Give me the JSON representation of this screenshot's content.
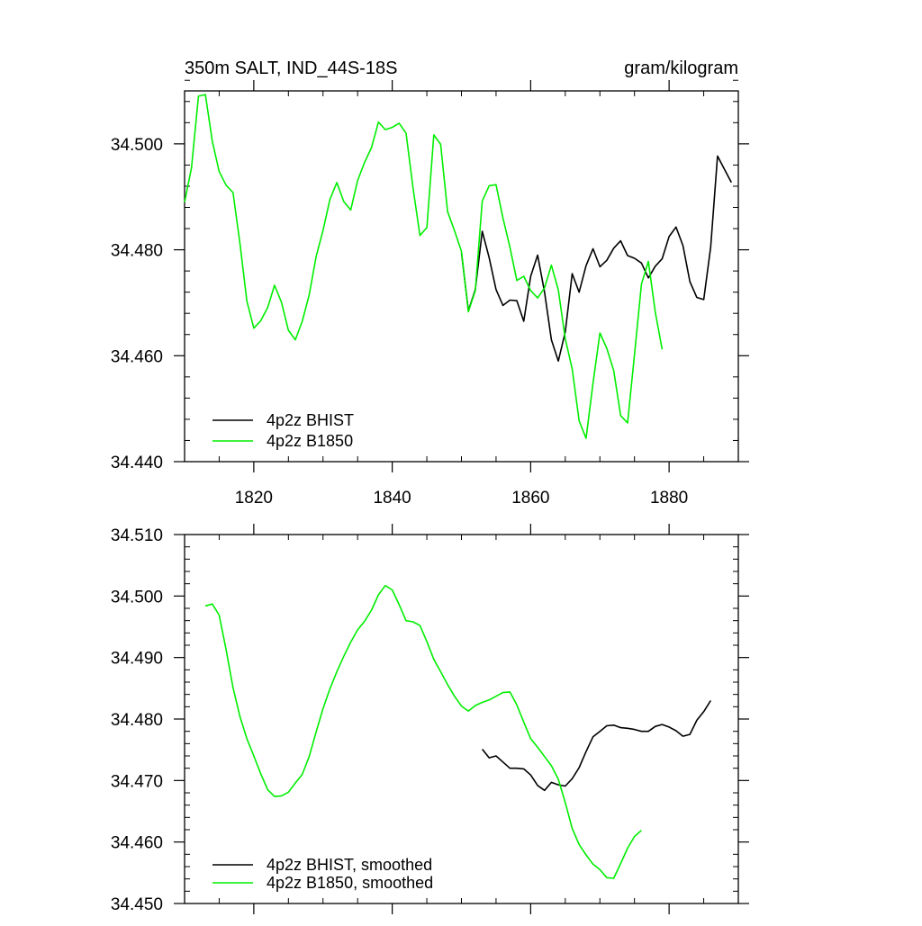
{
  "colors": {
    "bhist": "#000000",
    "b1850": "#00ee00",
    "axis": "#000000"
  },
  "chart_data": [
    {
      "type": "line",
      "title": "350m SALT, IND_44S-18S",
      "units": "gram/kilogram",
      "xlim": [
        1810,
        1890
      ],
      "ylim": [
        34.44,
        34.51
      ],
      "x_ticks": [
        1820,
        1840,
        1860,
        1880
      ],
      "x_tick_labels": [
        "1820",
        "1840",
        "1860",
        "1880"
      ],
      "y_ticks": [
        34.44,
        34.46,
        34.48,
        34.5
      ],
      "y_tick_labels": [
        "34.440",
        "34.460",
        "34.480",
        "34.500"
      ],
      "legend_position": "bottom-left",
      "series": [
        {
          "name": "4p2z BHIST",
          "color_key": "bhist",
          "x": [
            1850,
            1851,
            1852,
            1853,
            1854,
            1855,
            1856,
            1857,
            1858,
            1859,
            1860,
            1861,
            1862,
            1863,
            1864,
            1865,
            1866,
            1867,
            1868,
            1869,
            1870,
            1871,
            1872,
            1873,
            1874,
            1875,
            1876,
            1877,
            1878,
            1879,
            1880,
            1881,
            1882,
            1883,
            1884,
            1885,
            1886,
            1887,
            1888,
            1889
          ],
          "values": [
            34.4795,
            34.4685,
            34.4725,
            34.4835,
            34.4785,
            34.4725,
            34.4695,
            34.4705,
            34.4704,
            34.4665,
            34.475,
            34.479,
            34.472,
            34.463,
            34.459,
            34.4645,
            34.4755,
            34.472,
            34.477,
            34.4802,
            34.4768,
            34.478,
            34.4803,
            34.4817,
            34.4789,
            34.4784,
            34.4775,
            34.4747,
            34.4769,
            34.4783,
            34.4825,
            34.4843,
            34.4808,
            34.474,
            34.471,
            34.4706,
            34.4805,
            34.4977,
            34.4952,
            34.4927
          ]
        },
        {
          "name": "4p2z B1850",
          "color_key": "b1850",
          "x": [
            1810,
            1811,
            1812,
            1813,
            1814,
            1815,
            1816,
            1817,
            1818,
            1819,
            1820,
            1821,
            1822,
            1823,
            1824,
            1825,
            1826,
            1827,
            1828,
            1829,
            1830,
            1831,
            1832,
            1833,
            1834,
            1835,
            1836,
            1837,
            1838,
            1839,
            1840,
            1841,
            1842,
            1843,
            1844,
            1845,
            1846,
            1847,
            1848,
            1849,
            1850,
            1851,
            1852,
            1853,
            1854,
            1855,
            1856,
            1857,
            1858,
            1859,
            1860,
            1861,
            1862,
            1863,
            1864,
            1865,
            1866,
            1867,
            1868,
            1869,
            1870,
            1871,
            1872,
            1873,
            1874,
            1875,
            1876,
            1877,
            1878,
            1879
          ],
          "values": [
            34.489,
            34.4955,
            34.509,
            34.5093,
            34.5005,
            34.4948,
            34.4922,
            34.4908,
            34.4812,
            34.4703,
            34.4652,
            34.4666,
            34.4691,
            34.4733,
            34.4701,
            34.4648,
            34.463,
            34.4665,
            34.4715,
            34.4787,
            34.4837,
            34.4895,
            34.4927,
            34.4891,
            34.4875,
            34.4931,
            34.4965,
            34.4993,
            34.5041,
            34.5027,
            34.5031,
            34.5039,
            34.502,
            34.4917,
            34.4827,
            34.4842,
            34.5017,
            34.4999,
            34.4872,
            34.4836,
            34.4797,
            34.4683,
            34.4723,
            34.4892,
            34.4921,
            34.4923,
            34.486,
            34.4805,
            34.4742,
            34.475,
            34.4723,
            34.4709,
            34.4728,
            34.4771,
            34.4724,
            34.4632,
            34.4575,
            34.4477,
            34.4444,
            34.4548,
            34.4643,
            34.4614,
            34.4572,
            34.4487,
            34.4473,
            34.4602,
            34.4735,
            34.4778,
            34.4682,
            34.4612
          ]
        }
      ]
    },
    {
      "type": "line",
      "xlim": [
        1810,
        1890
      ],
      "ylim": [
        34.45,
        34.51
      ],
      "x_ticks": [
        1820,
        1840,
        1860,
        1880
      ],
      "y_ticks": [
        34.45,
        34.46,
        34.47,
        34.48,
        34.49,
        34.5,
        34.51
      ],
      "y_tick_labels": [
        "34.450",
        "34.460",
        "34.470",
        "34.480",
        "34.490",
        "34.500",
        "34.510"
      ],
      "legend_position": "bottom-left",
      "series": [
        {
          "name": "4p2z BHIST, smoothed",
          "color_key": "bhist",
          "x": [
            1853,
            1854,
            1855,
            1856,
            1857,
            1858,
            1859,
            1860,
            1861,
            1862,
            1863,
            1864,
            1865,
            1866,
            1867,
            1868,
            1869,
            1870,
            1871,
            1872,
            1873,
            1874,
            1875,
            1876,
            1877,
            1878,
            1879,
            1880,
            1881,
            1882,
            1883,
            1884,
            1885,
            1886
          ],
          "values": [
            34.4751,
            34.4737,
            34.474,
            34.473,
            34.472,
            34.472,
            34.4719,
            34.4709,
            34.4692,
            34.4684,
            34.4697,
            34.4693,
            34.4691,
            34.4703,
            34.4721,
            34.4747,
            34.4771,
            34.478,
            34.4789,
            34.479,
            34.4786,
            34.4785,
            34.4783,
            34.478,
            34.478,
            34.4788,
            34.4791,
            34.4787,
            34.4781,
            34.4772,
            34.4775,
            34.4798,
            34.4812,
            34.483
          ]
        },
        {
          "name": "4p2z B1850, smoothed",
          "color_key": "b1850",
          "x": [
            1813,
            1814,
            1815,
            1816,
            1817,
            1818,
            1819,
            1820,
            1821,
            1822,
            1823,
            1824,
            1825,
            1826,
            1827,
            1828,
            1829,
            1830,
            1831,
            1832,
            1833,
            1834,
            1835,
            1836,
            1837,
            1838,
            1839,
            1840,
            1841,
            1842,
            1843,
            1844,
            1845,
            1846,
            1847,
            1848,
            1849,
            1850,
            1851,
            1852,
            1853,
            1854,
            1855,
            1856,
            1857,
            1858,
            1859,
            1860,
            1861,
            1862,
            1863,
            1864,
            1865,
            1866,
            1867,
            1868,
            1869,
            1870,
            1871,
            1872,
            1873,
            1874,
            1875,
            1876
          ],
          "values": [
            34.4984,
            34.4987,
            34.4969,
            34.4913,
            34.4851,
            34.4804,
            34.4768,
            34.474,
            34.4711,
            34.4685,
            34.4674,
            34.4675,
            34.4681,
            34.4696,
            34.471,
            34.4739,
            34.4779,
            34.4817,
            34.4849,
            34.4877,
            34.4902,
            34.4925,
            34.4945,
            34.4959,
            34.4977,
            34.5002,
            34.5017,
            34.501,
            34.4986,
            34.496,
            34.4958,
            34.4952,
            34.4926,
            34.4897,
            34.4877,
            34.4856,
            34.4837,
            34.4821,
            34.4813,
            34.4822,
            34.4827,
            34.4831,
            34.4837,
            34.4843,
            34.4844,
            34.4823,
            34.4795,
            34.4768,
            34.4754,
            34.4739,
            34.4724,
            34.4702,
            34.4664,
            34.4622,
            34.4596,
            34.4579,
            34.4564,
            34.4555,
            34.4542,
            34.4541,
            34.4565,
            34.459,
            34.4609,
            34.4619
          ]
        }
      ]
    }
  ]
}
